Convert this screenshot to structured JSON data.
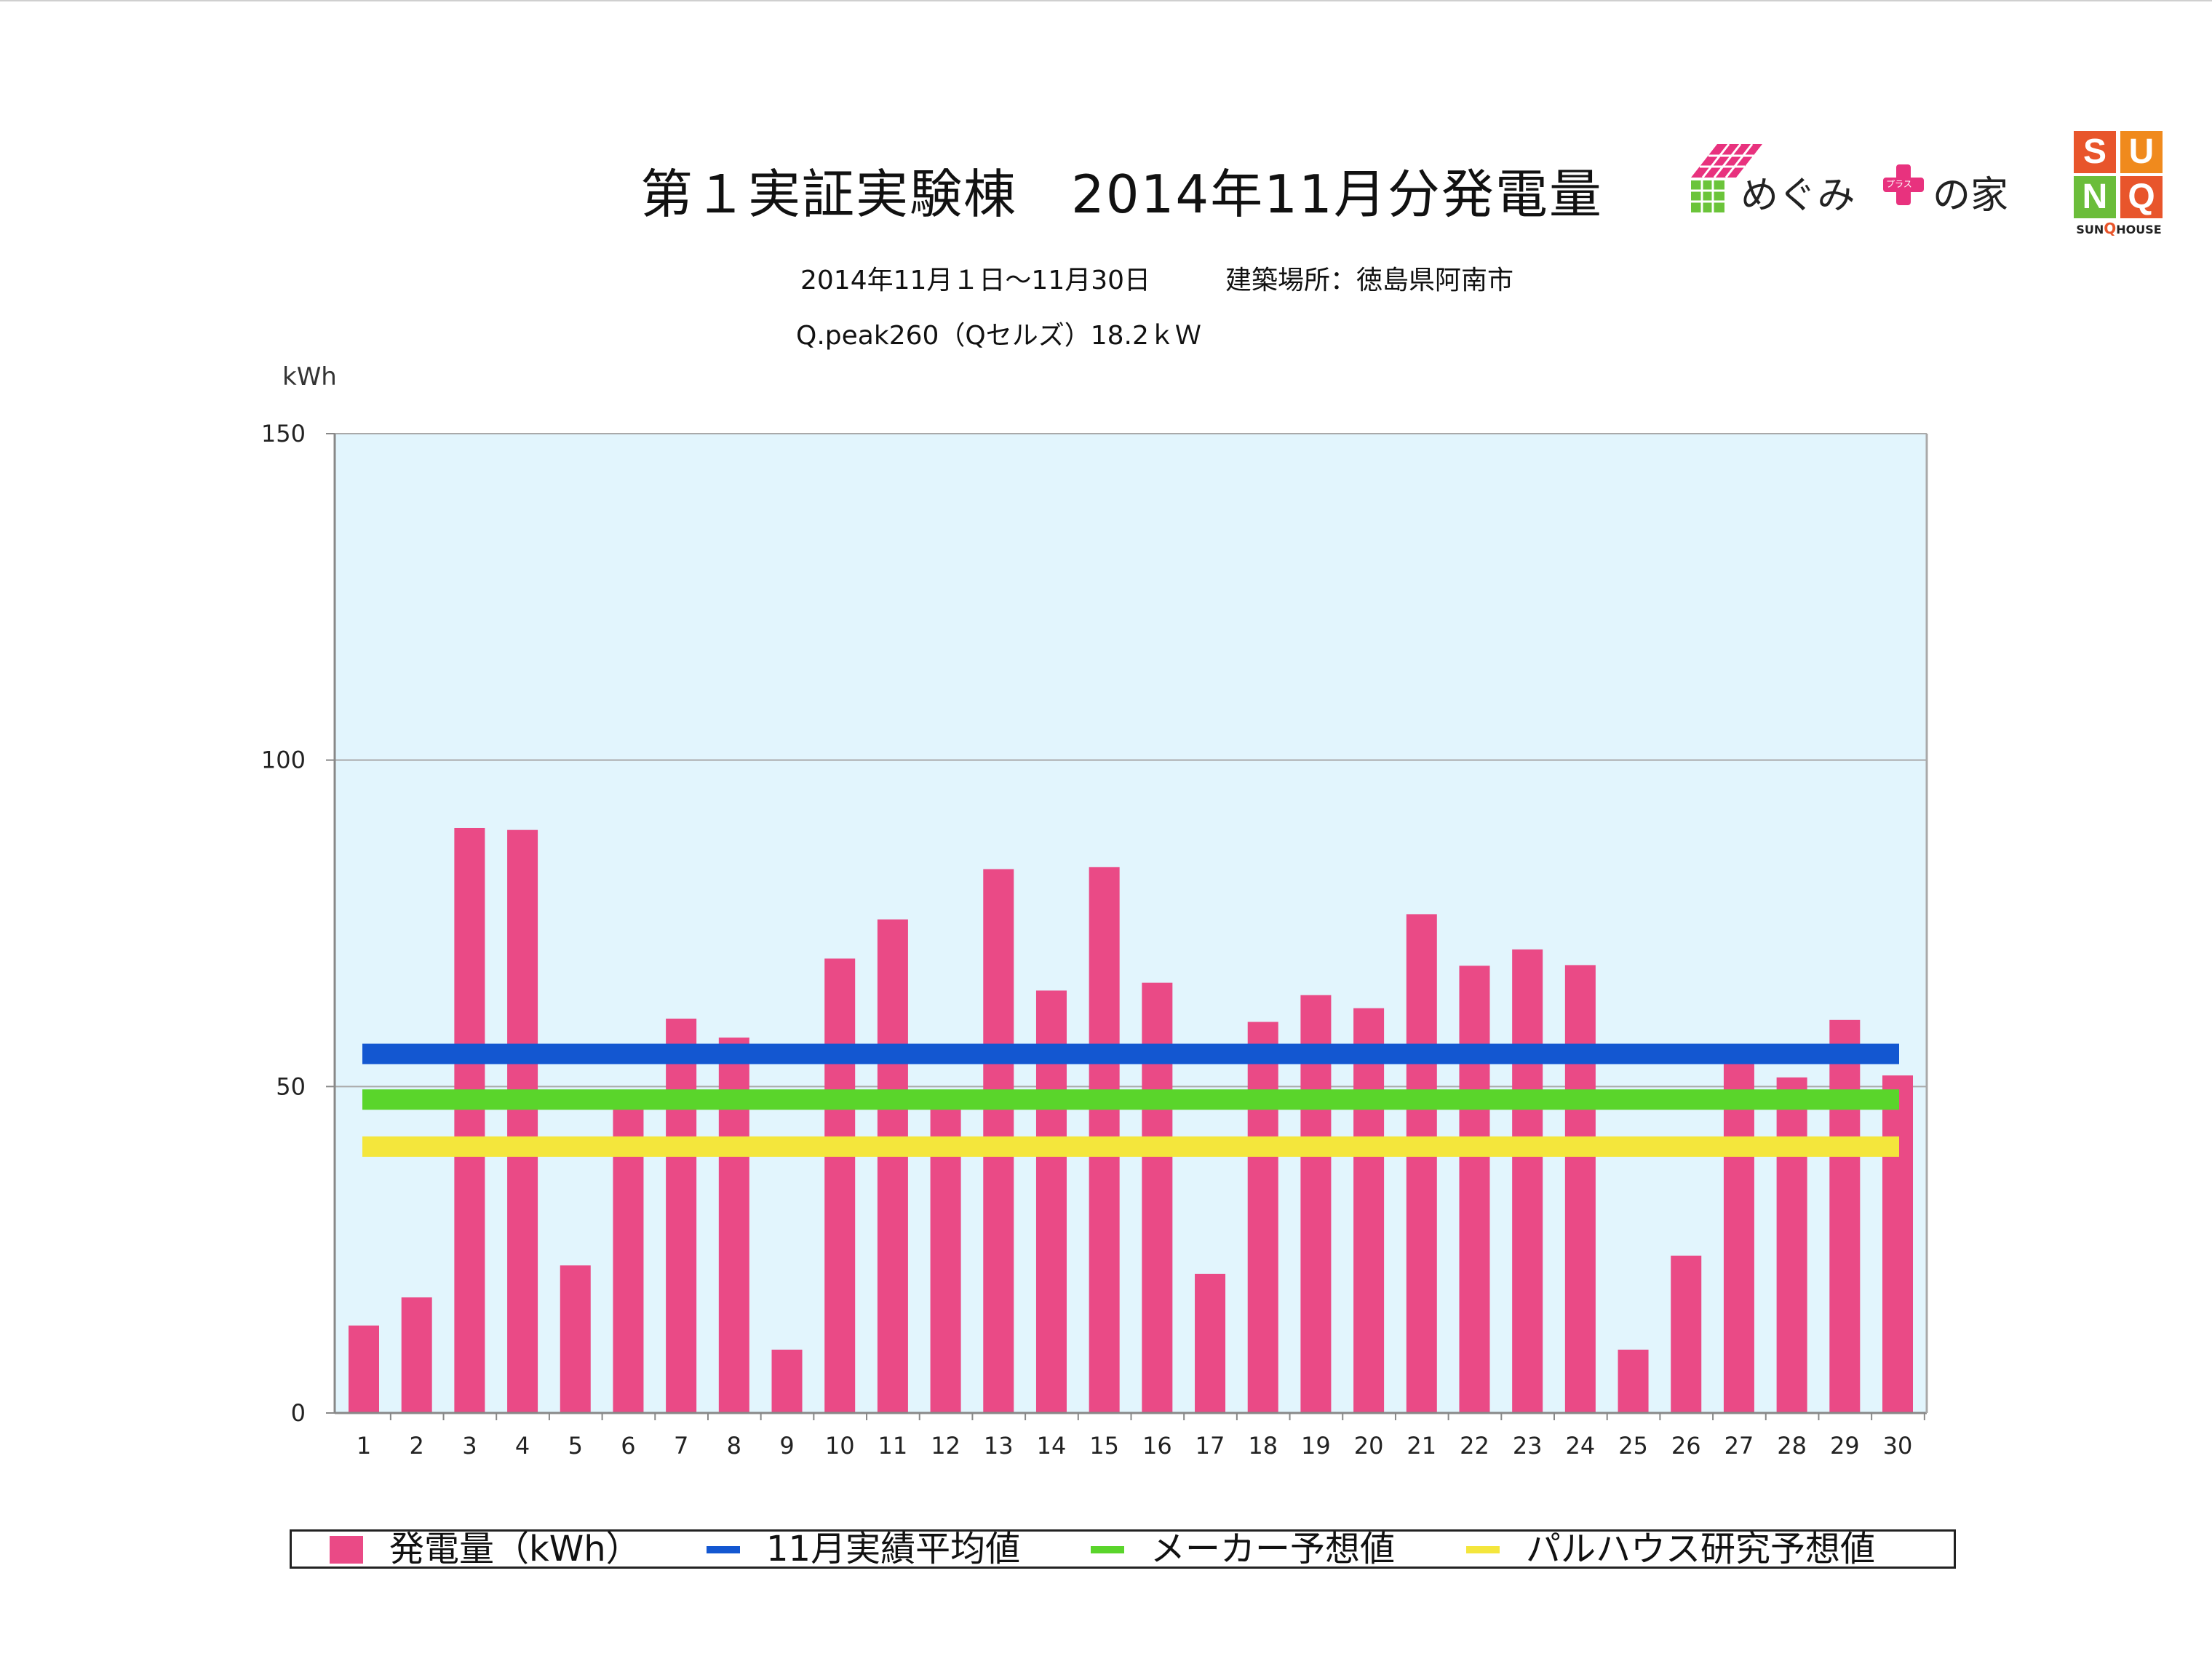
{
  "header": {
    "title": "第１実証実験棟　2014年11月分発電量",
    "period": "2014年11月１日〜11月30日",
    "location": "建築場所：徳島県阿南市",
    "system": "Q.peak260（Qセルズ）18.2ｋＷ",
    "unit": "kWh"
  },
  "logos": {
    "megumi": {
      "name": "めぐみ",
      "plus_text": "プラス",
      "suffix": "の家"
    },
    "sunq": {
      "letters": [
        "S",
        "U",
        "N",
        "Q"
      ],
      "caption_prefix": "SUN",
      "caption_q": "Q",
      "caption_suffix": "HOUSE"
    }
  },
  "colors": {
    "bar": "#ea4a86",
    "plot_bg": "#e2f5fd",
    "avg": "#1357d1",
    "maker": "#5ad52b",
    "palhaus": "#f4e63c"
  },
  "chart_data": {
    "type": "bar",
    "title": "第１実証実験棟　2014年11月分発電量",
    "ylabel": "kWh",
    "ylim": [
      0,
      150
    ],
    "yticks": [
      "0",
      "50",
      "100",
      "150"
    ],
    "grid": true,
    "legend_position": "bottom",
    "categories": [
      "1",
      "2",
      "3",
      "4",
      "5",
      "6",
      "7",
      "8",
      "9",
      "10",
      "11",
      "12",
      "13",
      "14",
      "15",
      "16",
      "17",
      "18",
      "19",
      "20",
      "21",
      "22",
      "23",
      "24",
      "25",
      "26",
      "27",
      "28",
      "29",
      "30"
    ],
    "series": [
      {
        "name": "発電量（kWh）",
        "type": "bar",
        "values": [
          13.4,
          17.7,
          89.6,
          89.3,
          22.6,
          47.6,
          60.4,
          57.5,
          9.7,
          69.6,
          75.6,
          47.2,
          83.3,
          64.7,
          83.6,
          65.9,
          21.3,
          59.9,
          64.0,
          62.0,
          76.4,
          68.5,
          71.0,
          68.6,
          9.7,
          24.1,
          53.5,
          51.4,
          60.2,
          51.7
        ]
      },
      {
        "name": "11月実績平均値",
        "type": "line",
        "value": 55.0
      },
      {
        "name": "メーカー予想値",
        "type": "line",
        "value": 48.0
      },
      {
        "name": "パルハウス研究予想値",
        "type": "line",
        "value": 40.8
      }
    ]
  }
}
